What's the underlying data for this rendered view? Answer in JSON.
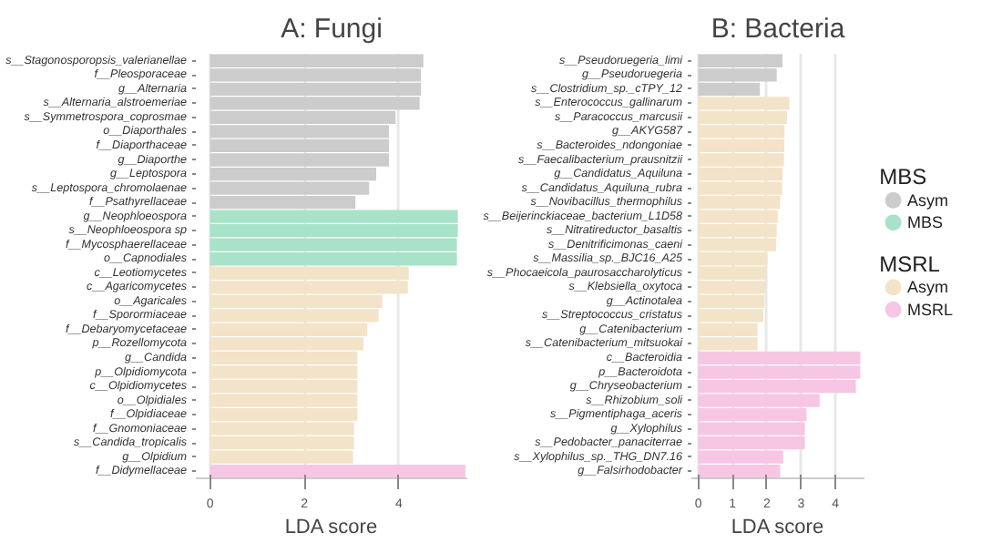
{
  "chart_data": [
    {
      "type": "bar",
      "orientation": "horizontal",
      "title": "A: Fungi",
      "xlabel": "LDA score",
      "categories": [
        "s__Stagonosporopsis_valerianellae",
        "f__Pleosporaceae",
        "g__Alternaria",
        "s__Alternaria_alstroemeriae",
        "s__Symmetrospora_coprosmae",
        "o__Diaporthales",
        "f__Diaporthaceae",
        "g__Diaporthe",
        "g__Leptospora",
        "s__Leptospora_chromolaenae",
        "f__Psathyrellaceae",
        "g__Neophloeospora",
        "s__Neophloeospora sp",
        "f__Mycosphaerellaceae",
        "o__Capnodiales",
        "c__Leotiomycetes",
        "c__Agaricomycetes",
        "o__Agaricales",
        "f__Sporormiaceae",
        "f__Debaryomycetaceae",
        "p__Rozellomycota",
        "g__Candida",
        "p__Olpidiomycota",
        "c__Olpidiomycetes",
        "o__Olpidiales",
        "f__Olpidiaceae",
        "f__Gnomoniaceae",
        "s__Candida_tropicalis",
        "g__Olpidium",
        "f__Didymellaceae"
      ],
      "series": [
        {
          "name": "Asym",
          "color": "#cccccc",
          "values": [
            4.52,
            4.47,
            4.47,
            4.44,
            3.93,
            3.79,
            3.79,
            3.79,
            3.52,
            3.37,
            3.08,
            null,
            null,
            null,
            null,
            null,
            null,
            null,
            null,
            null,
            null,
            null,
            null,
            null,
            null,
            null,
            null,
            null,
            null,
            null
          ]
        },
        {
          "name": "MBS",
          "color": "#a8e2c9",
          "values": [
            null,
            null,
            null,
            null,
            null,
            null,
            null,
            null,
            null,
            null,
            null,
            5.25,
            5.25,
            5.23,
            5.23,
            null,
            null,
            null,
            null,
            null,
            null,
            null,
            null,
            null,
            null,
            null,
            null,
            null,
            null,
            null
          ]
        },
        {
          "name": "Asym",
          "color": "#f3e3c8",
          "values": [
            null,
            null,
            null,
            null,
            null,
            null,
            null,
            null,
            null,
            null,
            null,
            null,
            null,
            null,
            null,
            4.21,
            4.19,
            3.65,
            3.57,
            3.33,
            3.25,
            3.12,
            3.12,
            3.12,
            3.12,
            3.12,
            3.05,
            3.05,
            3.03,
            null
          ]
        },
        {
          "name": "MSRL",
          "color": "#f6c6e4",
          "values": [
            null,
            null,
            null,
            null,
            null,
            null,
            null,
            null,
            null,
            null,
            null,
            null,
            null,
            null,
            null,
            null,
            null,
            null,
            null,
            null,
            null,
            null,
            null,
            null,
            null,
            null,
            null,
            null,
            null,
            5.41
          ]
        }
      ],
      "xlim": [
        -0.3,
        5.45
      ],
      "xticks": [
        0,
        2,
        4
      ],
      "grid": "x",
      "legend": "right",
      "legend_title": [
        "MBS",
        "MSRL"
      ]
    },
    {
      "type": "bar",
      "orientation": "horizontal",
      "title": "B: Bacteria",
      "xlabel": "LDA score",
      "categories": [
        "s__Pseudoruegeria_limi",
        "g__Pseudoruegeria",
        "s__Clostridium_sp._cTPY_12",
        "s__Enterococcus_gallinarum",
        "s__Paracoccus_marcusii",
        "g__AKYG587",
        "s__Bacteroides_ndongoniae",
        "s__Faecalibacterium_prausnitzii",
        "g__Candidatus_Aquiluna",
        "s__Candidatus_Aquiluna_rubra",
        "s__Novibacillus_thermophilus",
        "s__Beijerinckiaceae_bacterium_L1D58",
        "s__Nitratireductor_basaltis",
        "s__Denitrificimonas_caeni",
        "s__Massilia_sp._BJC16_A25",
        "s__Phocaeicola_paurosaccharolyticus",
        "s__Klebsiella_oxytoca",
        "g__Actinotalea",
        "s__Streptococcus_cristatus",
        "g__Catenibacterium",
        "s__Catenibacterium_mitsuokai",
        "c__Bacteroidia",
        "p__Bacteroidota",
        "g__Chryseobacterium",
        "s__Rhizobium_soli",
        "s__Pigmentiphaga_aceris",
        "g__Xylophilus",
        "s__Pedobacter_panaciterrae",
        "s__Xylophilus_sp._THG_DN7.16",
        "g__Falsirhodobacter"
      ],
      "series": [
        {
          "color": "#cccccc",
          "values": [
            2.46,
            2.29,
            1.8,
            null,
            null,
            null,
            null,
            null,
            null,
            null,
            null,
            null,
            null,
            null,
            null,
            null,
            null,
            null,
            null,
            null,
            null,
            null,
            null,
            null,
            null,
            null,
            null,
            null,
            null,
            null
          ]
        },
        {
          "color": "#f3e3c8",
          "values": [
            null,
            null,
            null,
            2.66,
            2.59,
            2.52,
            2.51,
            2.5,
            2.46,
            2.45,
            2.39,
            2.32,
            2.29,
            2.27,
            2.02,
            1.99,
            1.96,
            1.93,
            1.9,
            1.73,
            1.73,
            null,
            null,
            null,
            null,
            null,
            null,
            null,
            null,
            null
          ]
        },
        {
          "color": "#f6c6e4",
          "values": [
            null,
            null,
            null,
            null,
            null,
            null,
            null,
            null,
            null,
            null,
            null,
            null,
            null,
            null,
            null,
            null,
            null,
            null,
            null,
            null,
            null,
            4.73,
            4.73,
            4.6,
            3.54,
            3.16,
            3.11,
            3.11,
            2.48,
            2.39
          ]
        }
      ],
      "xlim": [
        -0.2,
        4.85
      ],
      "xticks": [
        0,
        1,
        2,
        3,
        4
      ],
      "grid": "x"
    }
  ]
}
